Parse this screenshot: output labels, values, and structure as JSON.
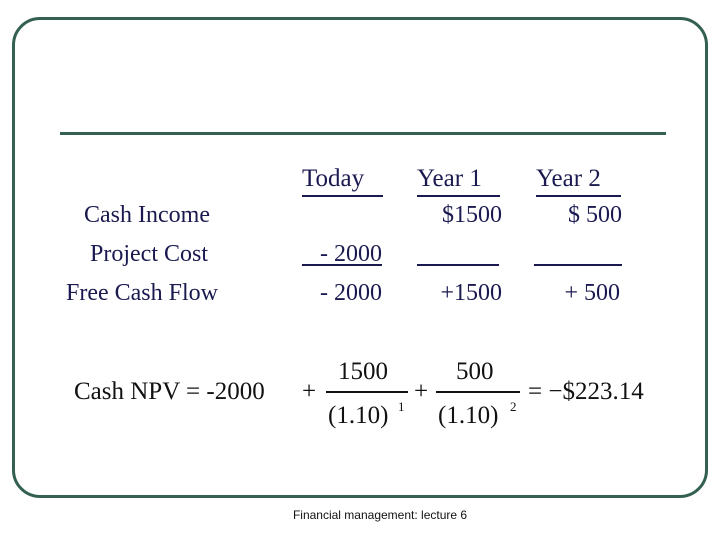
{
  "table": {
    "headers": [
      "Today",
      "Year 1",
      "Year 2"
    ],
    "rows": [
      {
        "label": "Cash Income",
        "today": "",
        "year1": "$1500",
        "year2": "$ 500"
      },
      {
        "label": "Project Cost",
        "today": "- 2000",
        "year1": "",
        "year2": ""
      },
      {
        "label": "Free Cash Flow",
        "today": "- 2000",
        "year1": "+1500",
        "year2": "+ 500"
      }
    ]
  },
  "formula": {
    "lhs": "Cash NPV = -2000",
    "plus1": "+",
    "frac1_num": "1500",
    "frac1_den": "(1.10)",
    "frac1_exp": "1",
    "plus2": "+",
    "frac2_num": "500",
    "frac2_den": "(1.10)",
    "frac2_exp": "2",
    "result": "= −$223.14"
  },
  "footer": "Financial management: lecture 6"
}
